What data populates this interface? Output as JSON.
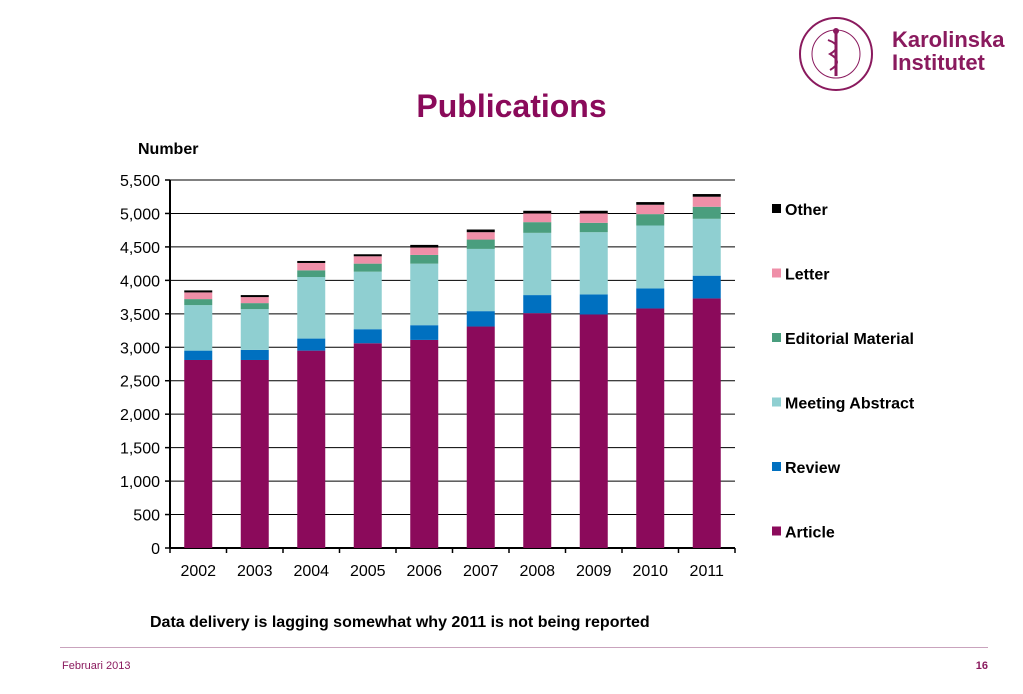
{
  "slide": {
    "title": "Publications",
    "caption": "Data delivery is lagging somewhat why 2011 is not being reported",
    "footer_date": "Februari 2013",
    "page_number": "16"
  },
  "logo": {
    "name_line1": "Karolinska",
    "name_line2": "Institutet",
    "seal_text": "KAROLINSKA INSTITUTET ANNO 1810",
    "color": "#8a1a5e"
  },
  "chart_data": {
    "type": "bar",
    "stacked": true,
    "ylabel": "Number",
    "xlabel": "",
    "ylim": [
      0,
      5500
    ],
    "yticks": [
      "0",
      "500",
      "1,000",
      "1,500",
      "2,000",
      "2,500",
      "3,000",
      "3,500",
      "4,000",
      "4,500",
      "5,000",
      "5,500"
    ],
    "ytick_values": [
      0,
      500,
      1000,
      1500,
      2000,
      2500,
      3000,
      3500,
      4000,
      4500,
      5000,
      5500
    ],
    "grid": true,
    "legend_position": "right",
    "categories": [
      "2002",
      "2003",
      "2004",
      "2005",
      "2006",
      "2007",
      "2008",
      "2009",
      "2010",
      "2011"
    ],
    "series": [
      {
        "name": "Article",
        "color": "#8b0a5b",
        "values": [
          2810,
          2810,
          2950,
          3060,
          3110,
          3310,
          3510,
          3490,
          3580,
          3730
        ]
      },
      {
        "name": "Review",
        "color": "#0070c0",
        "values": [
          140,
          150,
          180,
          210,
          220,
          230,
          270,
          300,
          300,
          340
        ]
      },
      {
        "name": "Meeting Abstract",
        "color": "#8fcfd1",
        "values": [
          680,
          610,
          920,
          860,
          920,
          930,
          930,
          930,
          940,
          850
        ]
      },
      {
        "name": "Editorial Material",
        "color": "#4a9e7e",
        "values": [
          90,
          90,
          100,
          120,
          130,
          140,
          160,
          140,
          170,
          180
        ]
      },
      {
        "name": "Letter",
        "color": "#ef8fa8",
        "values": [
          100,
          90,
          110,
          110,
          110,
          110,
          130,
          140,
          140,
          150
        ]
      },
      {
        "name": "Other",
        "color": "#000000",
        "values": [
          30,
          30,
          30,
          30,
          40,
          40,
          40,
          40,
          40,
          40
        ]
      }
    ]
  }
}
